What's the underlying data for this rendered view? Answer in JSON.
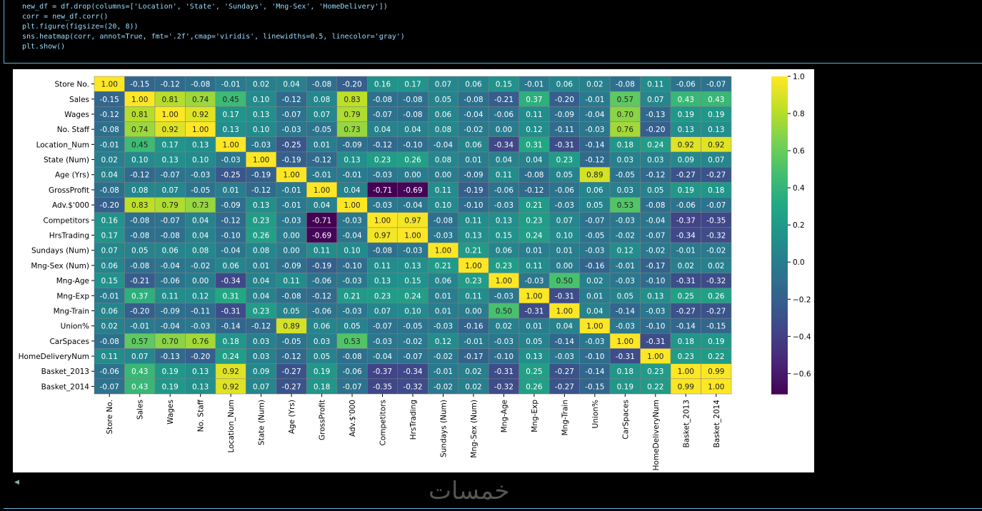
{
  "code_cell": {
    "lines": [
      "new_df = df.drop(columns=['Location', 'State', 'Sundays', 'Mng-Sex', 'HomeDelivery'])",
      "corr = new_df.corr()",
      "plt.figure(figsize=(20, 8))",
      "sns.heatmap(corr, annot=True, fmt='.2f',cmap='viridis', linewidths=0.5, linecolor='gray')",
      "plt.show()"
    ]
  },
  "watermark": "خمسات",
  "chart_data": {
    "type": "heatmap",
    "colormap": "viridis",
    "vmin": -0.71,
    "vmax": 1.0,
    "linecolor": "#808080",
    "labels": [
      "Store No.",
      "Sales",
      "Wages",
      "No. Staff",
      "Location_Num",
      "State (Num)",
      "Age (Yrs)",
      "GrossProfit",
      "Adv.$'000",
      "Competitors",
      "HrsTrading",
      "Sundays (Num)",
      "Mng-Sex (Num)",
      "Mng-Age",
      "Mng-Exp",
      "Mng-Train",
      "Union%",
      "CarSpaces",
      "HomeDeliveryNum",
      "Basket_2013",
      "Basket_2014"
    ],
    "values": [
      [
        1.0,
        -0.15,
        -0.12,
        -0.08,
        -0.01,
        0.02,
        0.04,
        -0.08,
        -0.2,
        0.16,
        0.17,
        0.07,
        0.06,
        0.15,
        -0.01,
        0.06,
        0.02,
        -0.08,
        0.11,
        -0.06,
        -0.07
      ],
      [
        -0.15,
        1.0,
        0.81,
        0.74,
        0.45,
        0.1,
        -0.12,
        0.08,
        0.83,
        -0.08,
        -0.08,
        0.05,
        -0.08,
        -0.21,
        0.37,
        -0.2,
        -0.01,
        0.57,
        0.07,
        0.43,
        0.43
      ],
      [
        -0.12,
        0.81,
        1.0,
        0.92,
        0.17,
        0.13,
        -0.07,
        0.07,
        0.79,
        -0.07,
        -0.08,
        0.06,
        -0.04,
        -0.06,
        0.11,
        -0.09,
        -0.04,
        0.7,
        -0.13,
        0.19,
        0.19
      ],
      [
        -0.08,
        0.74,
        0.92,
        1.0,
        0.13,
        0.1,
        -0.03,
        -0.05,
        0.73,
        0.04,
        0.04,
        0.08,
        -0.02,
        0.0,
        0.12,
        -0.11,
        -0.03,
        0.76,
        -0.2,
        0.13,
        0.13
      ],
      [
        -0.01,
        0.45,
        0.17,
        0.13,
        1.0,
        -0.03,
        -0.25,
        0.01,
        -0.09,
        -0.12,
        -0.1,
        -0.04,
        0.06,
        -0.34,
        0.31,
        -0.31,
        -0.14,
        0.18,
        0.24,
        0.92,
        0.92
      ],
      [
        0.02,
        0.1,
        0.13,
        0.1,
        -0.03,
        1.0,
        -0.19,
        -0.12,
        0.13,
        0.23,
        0.26,
        0.08,
        0.01,
        0.04,
        0.04,
        0.23,
        -0.12,
        0.03,
        0.03,
        0.09,
        0.07
      ],
      [
        0.04,
        -0.12,
        -0.07,
        -0.03,
        -0.25,
        -0.19,
        1.0,
        -0.01,
        -0.01,
        -0.03,
        0.0,
        -0.0,
        -0.09,
        0.11,
        -0.08,
        0.05,
        0.89,
        -0.05,
        -0.12,
        -0.27,
        -0.27
      ],
      [
        -0.08,
        0.08,
        0.07,
        -0.05,
        0.01,
        -0.12,
        -0.01,
        1.0,
        0.04,
        -0.71,
        -0.69,
        0.11,
        -0.19,
        -0.06,
        -0.12,
        -0.06,
        0.06,
        0.03,
        0.05,
        0.19,
        0.18
      ],
      [
        -0.2,
        0.83,
        0.79,
        0.73,
        -0.09,
        0.13,
        -0.01,
        0.04,
        1.0,
        -0.03,
        -0.04,
        0.1,
        -0.1,
        -0.03,
        0.21,
        -0.03,
        0.05,
        0.53,
        -0.08,
        -0.06,
        -0.07
      ],
      [
        0.16,
        -0.08,
        -0.07,
        0.04,
        -0.12,
        0.23,
        -0.03,
        -0.71,
        -0.03,
        1.0,
        0.97,
        -0.08,
        0.11,
        0.13,
        0.23,
        0.07,
        -0.07,
        -0.03,
        -0.04,
        -0.37,
        -0.35
      ],
      [
        0.17,
        -0.08,
        -0.08,
        0.04,
        -0.1,
        0.26,
        0.0,
        -0.69,
        -0.04,
        0.97,
        1.0,
        -0.03,
        0.13,
        0.15,
        0.24,
        0.1,
        -0.05,
        -0.02,
        -0.07,
        -0.34,
        -0.32
      ],
      [
        0.07,
        0.05,
        0.06,
        0.08,
        -0.04,
        0.08,
        -0.0,
        0.11,
        0.1,
        -0.08,
        -0.03,
        1.0,
        0.21,
        0.06,
        0.01,
        0.01,
        -0.03,
        0.12,
        -0.02,
        -0.01,
        -0.02
      ],
      [
        0.06,
        -0.08,
        -0.04,
        -0.02,
        0.06,
        0.01,
        -0.09,
        -0.19,
        -0.1,
        0.11,
        0.13,
        0.21,
        1.0,
        0.23,
        0.11,
        0.0,
        -0.16,
        -0.01,
        -0.17,
        0.02,
        0.02
      ],
      [
        0.15,
        -0.21,
        -0.06,
        0.0,
        -0.34,
        0.04,
        0.11,
        -0.06,
        -0.03,
        0.13,
        0.15,
        0.06,
        0.23,
        1.0,
        -0.03,
        0.5,
        0.02,
        -0.03,
        -0.1,
        -0.31,
        -0.32
      ],
      [
        -0.01,
        0.37,
        0.11,
        0.12,
        0.31,
        0.04,
        -0.08,
        -0.12,
        0.21,
        0.23,
        0.24,
        0.01,
        0.11,
        -0.03,
        1.0,
        -0.31,
        0.01,
        0.05,
        0.13,
        0.25,
        0.26
      ],
      [
        0.06,
        -0.2,
        -0.09,
        -0.11,
        -0.31,
        0.23,
        0.05,
        -0.06,
        -0.03,
        0.07,
        0.1,
        0.01,
        0.0,
        0.5,
        -0.31,
        1.0,
        0.04,
        -0.14,
        -0.03,
        -0.27,
        -0.27
      ],
      [
        0.02,
        -0.01,
        -0.04,
        -0.03,
        -0.14,
        -0.12,
        0.89,
        0.06,
        0.05,
        -0.07,
        -0.05,
        -0.03,
        -0.16,
        0.02,
        0.01,
        0.04,
        1.0,
        -0.03,
        -0.1,
        -0.14,
        -0.15
      ],
      [
        -0.08,
        0.57,
        0.7,
        0.76,
        0.18,
        0.03,
        -0.05,
        0.03,
        0.53,
        -0.03,
        -0.02,
        0.12,
        -0.01,
        -0.03,
        0.05,
        -0.14,
        -0.03,
        1.0,
        -0.31,
        0.18,
        0.19
      ],
      [
        0.11,
        0.07,
        -0.13,
        -0.2,
        0.24,
        0.03,
        -0.12,
        0.05,
        -0.08,
        -0.04,
        -0.07,
        -0.02,
        -0.17,
        -0.1,
        0.13,
        -0.03,
        -0.1,
        -0.31,
        1.0,
        0.23,
        0.22
      ],
      [
        -0.06,
        0.43,
        0.19,
        0.13,
        0.92,
        0.09,
        -0.27,
        0.19,
        -0.06,
        -0.37,
        -0.34,
        -0.01,
        0.02,
        -0.31,
        0.25,
        -0.27,
        -0.14,
        0.18,
        0.23,
        1.0,
        0.99
      ],
      [
        -0.07,
        0.43,
        0.19,
        0.13,
        0.92,
        0.07,
        -0.27,
        0.18,
        -0.07,
        -0.35,
        -0.32,
        -0.02,
        0.02,
        -0.32,
        0.26,
        -0.27,
        -0.15,
        0.19,
        0.22,
        0.99,
        1.0
      ]
    ],
    "colorbar_ticks": [
      "1.0",
      "0.8",
      "0.6",
      "0.4",
      "0.2",
      "0.0",
      "−0.2",
      "−0.4",
      "−0.6"
    ],
    "colorbar_tick_values": [
      1.0,
      0.8,
      0.6,
      0.4,
      0.2,
      0.0,
      -0.2,
      -0.4,
      -0.6
    ]
  }
}
